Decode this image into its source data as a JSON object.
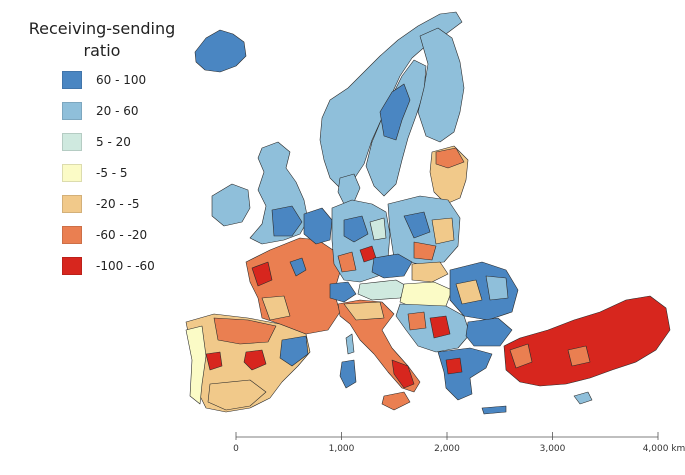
{
  "legend": {
    "title": "Receiving-sending ratio",
    "items": [
      {
        "label": "60 - 100",
        "color": "#4a86c2"
      },
      {
        "label": "20 - 60",
        "color": "#8fbfda"
      },
      {
        "label": "5 - 20",
        "color": "#cfe9df"
      },
      {
        "label": "-5 - 5",
        "color": "#fbfbc6"
      },
      {
        "label": "-20 - -5",
        "color": "#f1c98a"
      },
      {
        "label": "-60 - -20",
        "color": "#ea7f51"
      },
      {
        "label": "-100 - -60",
        "color": "#d7261e"
      }
    ]
  },
  "scale_bar": {
    "labels": [
      "0",
      "1,000",
      "2,000",
      "3,000",
      "4,000 km"
    ]
  },
  "colors": {
    "border": "#2a2a2a",
    "background": "#ffffff"
  }
}
